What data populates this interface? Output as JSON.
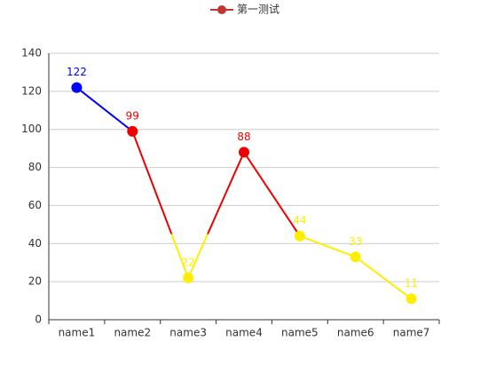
{
  "chart_data": {
    "type": "line",
    "categories": [
      "name1",
      "name2",
      "name3",
      "name4",
      "name5",
      "name6",
      "name7"
    ],
    "series": [
      {
        "name": "第一测试",
        "color": "#c23531",
        "values": [
          122,
          99,
          22,
          88,
          44,
          33,
          11
        ]
      }
    ],
    "pieces": [
      {
        "min": 0,
        "max": 45,
        "color": "#ffee00"
      },
      {
        "min": 45,
        "max": 100,
        "color": "#ee0000"
      },
      {
        "min": 100,
        "max": 140,
        "color": "#0000ff"
      }
    ],
    "ylim": [
      0,
      140
    ],
    "yticks": [
      0,
      20,
      40,
      60,
      80,
      100,
      120,
      140
    ],
    "grid": true,
    "legend": "top"
  }
}
